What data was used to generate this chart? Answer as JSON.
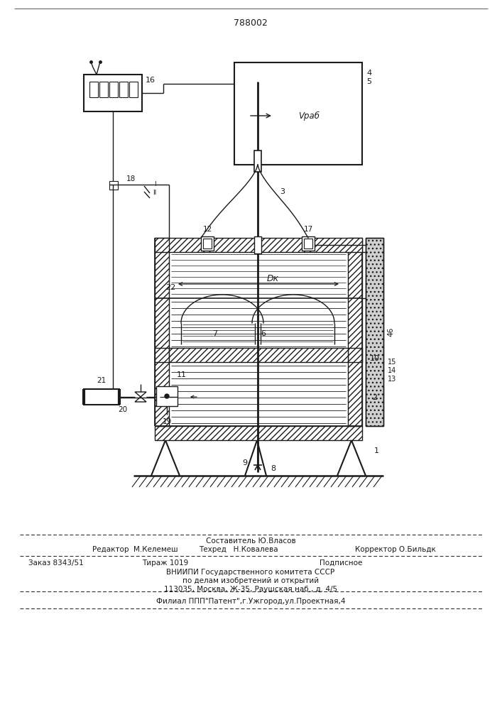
{
  "patent_number": "788002",
  "bg_color": "#ffffff",
  "line_color": "#1a1a1a",
  "fig_width": 7.07,
  "fig_height": 10.0,
  "dpi": 100,
  "footer_line1": "Составитель Ю.Власов",
  "footer_line2a": "Редактор  М.Келемеш",
  "footer_line2b": "Техред   Н.Ковалева",
  "footer_line2c": "Корректор О.Бильдк",
  "footer_line3a": "Заказ 8343/51",
  "footer_line3b": "Тираж 1019",
  "footer_line3c": "Подписное",
  "footer_line4": "ВНИИПИ Государственного комитета СССР",
  "footer_line5": "по делам изобретений и открытий",
  "footer_line6": "113035, Москва, Ж-35, Раушская наб., д. 4/5",
  "footer_line7": "Филиал ППП\"Патент\",г.Ужгород,ул.Проектная,4"
}
